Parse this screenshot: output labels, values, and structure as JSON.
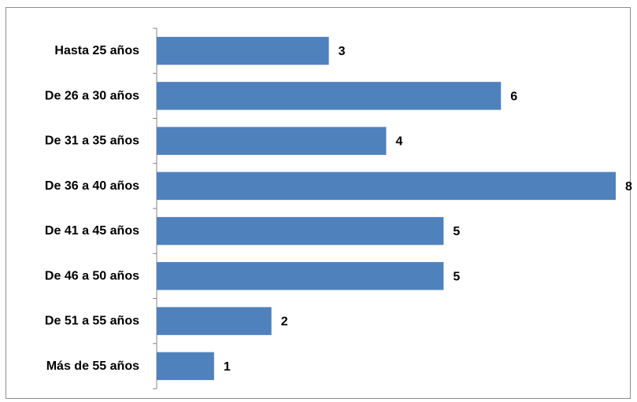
{
  "chart_data": {
    "type": "bar",
    "orientation": "horizontal",
    "categories": [
      "Hasta 25 años",
      "De 26 a 30 años",
      "De 31 a 35 años",
      "De 36 a 40 años",
      "De 41 a 45 años",
      "De 46 a 50 años",
      "De 51 a 55 años",
      "Más de 55 años"
    ],
    "values": [
      3,
      6,
      4,
      8,
      5,
      5,
      2,
      1
    ],
    "xlim": [
      0,
      8
    ],
    "grid": false,
    "legend": "none",
    "data_labels": true,
    "bar_color": "#4f81bd"
  }
}
